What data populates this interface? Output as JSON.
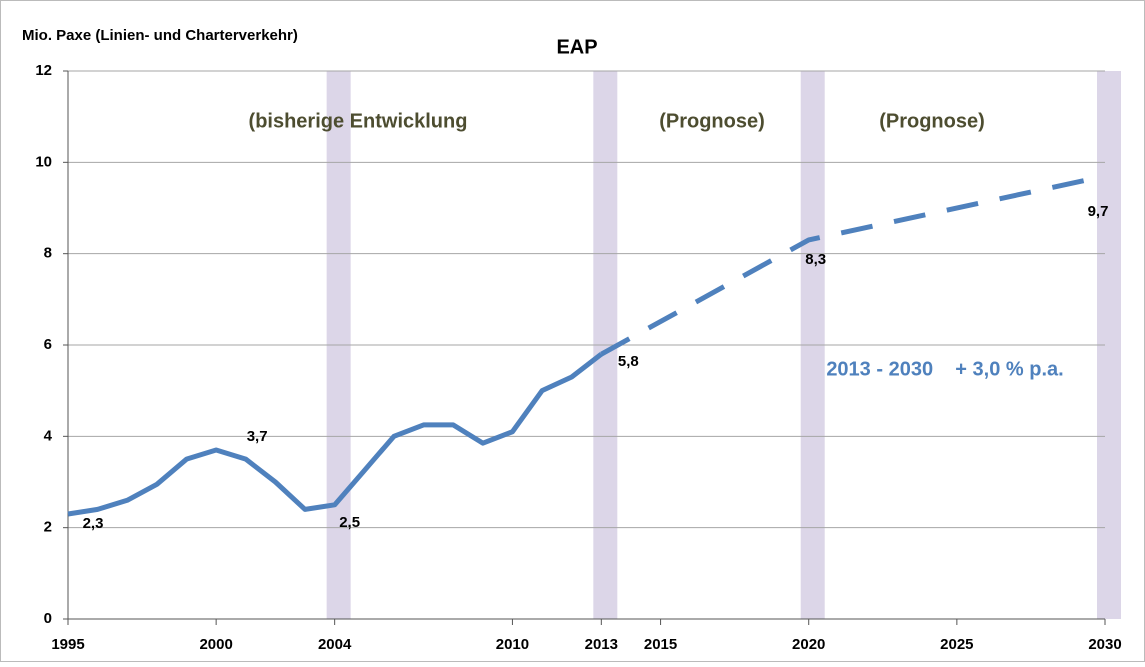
{
  "chart_data": {
    "type": "line",
    "title": "EAP",
    "ylabel": "Mio. Paxe (Linien- und Charterverkehr)",
    "xlim": [
      1995,
      2030
    ],
    "xticks": [
      1995,
      2000,
      2004,
      2010,
      2013,
      2015,
      2020,
      2025,
      2030
    ],
    "ylim": [
      0,
      12
    ],
    "yticks": [
      0,
      2,
      4,
      6,
      8,
      10,
      12
    ],
    "grid": true,
    "highlight_years": [
      2004,
      2013,
      2020,
      2030
    ],
    "highlight_color": "#dcd6e8",
    "series": [
      {
        "name": "bisherige Entwicklung",
        "color": "#4f81bd",
        "style": "solid",
        "x": [
          1995,
          1996,
          1997,
          1998,
          1999,
          2000,
          2001,
          2002,
          2003,
          2004,
          2005,
          2006,
          2007,
          2008,
          2009,
          2010,
          2011,
          2012,
          2013
        ],
        "values": [
          2.3,
          2.4,
          2.6,
          2.95,
          3.5,
          3.7,
          3.5,
          3.0,
          2.4,
          2.5,
          3.25,
          4.0,
          4.25,
          4.25,
          3.85,
          4.1,
          5.0,
          5.3,
          5.8
        ],
        "value_labels": [
          "2,3",
          null,
          null,
          null,
          null,
          "3,7",
          null,
          null,
          null,
          "2,5",
          null,
          null,
          null,
          null,
          null,
          null,
          null,
          null,
          "5,8"
        ]
      },
      {
        "name": "Prognose",
        "color": "#4f81bd",
        "style": "dashed",
        "x": [
          2013,
          2020,
          2030
        ],
        "values": [
          5.8,
          8.3,
          9.7
        ],
        "value_labels": [
          null,
          "8,3",
          "9,7"
        ]
      }
    ],
    "annotations": [
      "(bisherige Entwicklung",
      "(Prognose)",
      "(Prognose)",
      "2013 - 2030    + 3,0 % p.a."
    ]
  }
}
